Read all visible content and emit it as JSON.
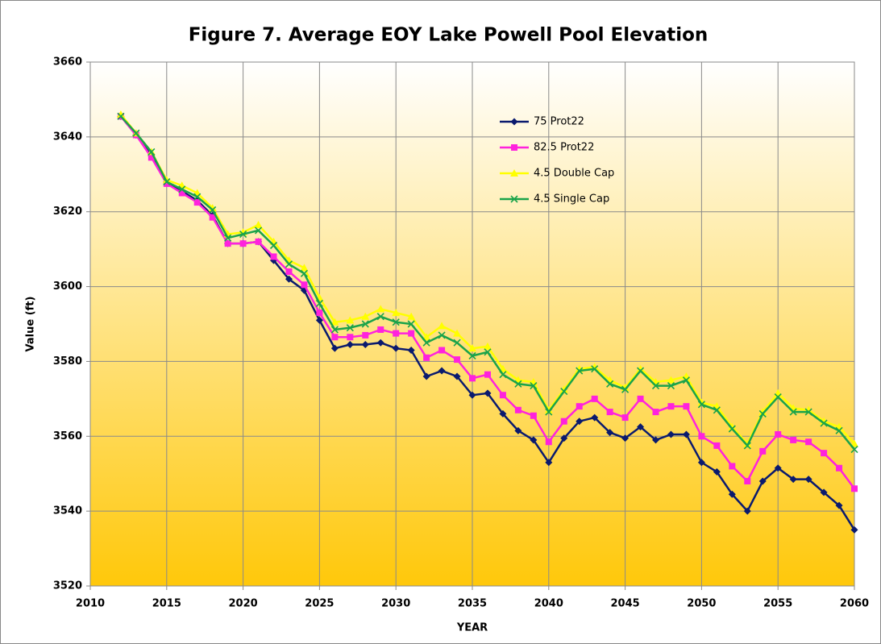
{
  "chart_data": {
    "type": "line",
    "title": "Figure 7. Average EOY Lake Powell Pool Elevation",
    "x_label": "YEAR",
    "y_label": "Value (ft)",
    "x": [
      2012,
      2013,
      2014,
      2015,
      2016,
      2017,
      2018,
      2019,
      2020,
      2021,
      2022,
      2023,
      2024,
      2025,
      2026,
      2027,
      2028,
      2029,
      2030,
      2031,
      2032,
      2033,
      2034,
      2035,
      2036,
      2037,
      2038,
      2039,
      2040,
      2041,
      2042,
      2043,
      2044,
      2045,
      2046,
      2047,
      2048,
      2049,
      2050,
      2051,
      2052,
      2053,
      2054,
      2055,
      2056,
      2057,
      2058,
      2059,
      2060
    ],
    "series": [
      {
        "name": "75 Prot22",
        "color": "#0a1a6e",
        "marker": "diamond",
        "values": [
          3645.5,
          3640.5,
          3635,
          3628,
          3625.5,
          3623,
          3619,
          3611.5,
          3611.5,
          3612,
          3607,
          3602,
          3599,
          3591,
          3583.5,
          3584.5,
          3584.5,
          3585,
          3583.5,
          3583,
          3576,
          3577.5,
          3576,
          3571,
          3571.5,
          3566,
          3561.5,
          3559,
          3553,
          3559.5,
          3564,
          3565,
          3561,
          3559.5,
          3562.5,
          3559,
          3560.5,
          3560.5,
          3553,
          3550.5,
          3544.5,
          3540,
          3548,
          3551.5,
          3548.5,
          3548.5,
          3545,
          3541.5,
          3535
        ]
      },
      {
        "name": "82.5 Prot22",
        "color": "#ff22dd",
        "marker": "square",
        "values": [
          3645.5,
          3640.5,
          3634.5,
          3627.5,
          3625,
          3622.5,
          3618.5,
          3611.5,
          3611.5,
          3612,
          3608,
          3604,
          3600.5,
          3593,
          3586.5,
          3586.5,
          3587,
          3588.5,
          3587.5,
          3587.5,
          3581,
          3583,
          3580.5,
          3575.5,
          3576.5,
          3571,
          3567,
          3565.5,
          3558.5,
          3564,
          3568,
          3570,
          3566.5,
          3565,
          3570,
          3566.5,
          3568,
          3568,
          3560,
          3557.5,
          3552,
          3548,
          3556,
          3560.5,
          3559,
          3558.5,
          3555.5,
          3551.5,
          3546
        ]
      },
      {
        "name": "4.5 Double Cap",
        "color": "#ffff00",
        "marker": "triangle",
        "values": [
          3646,
          3641,
          3636,
          3628.5,
          3627,
          3625,
          3621,
          3614,
          3614.5,
          3616.5,
          3612,
          3607,
          3605,
          3597,
          3590.5,
          3591,
          3592,
          3594,
          3593,
          3592,
          3586.5,
          3589.5,
          3587.5,
          3583.5,
          3584,
          3578,
          3575,
          3574.5,
          3567,
          3572.5,
          3578,
          3578.5,
          3575,
          3573,
          3578,
          3574.5,
          3575,
          3576,
          3569,
          3568,
          3562.5,
          3558,
          3566.5,
          3571.5,
          3567.5,
          3567,
          3564,
          3562.5,
          3558
        ]
      },
      {
        "name": "4.5 Single Cap",
        "color": "#1aa34a",
        "marker": "x",
        "values": [
          3645.5,
          3641,
          3636,
          3628,
          3626,
          3624,
          3620.5,
          3613,
          3614,
          3615,
          3611,
          3606,
          3603.5,
          3595.5,
          3588.5,
          3589,
          3590,
          3592,
          3590.5,
          3590,
          3585,
          3587,
          3585,
          3581.5,
          3582.5,
          3576.5,
          3574,
          3573.5,
          3566.5,
          3572,
          3577.5,
          3578,
          3574,
          3572.5,
          3577.5,
          3573.5,
          3573.5,
          3575,
          3568.5,
          3567,
          3562,
          3557.5,
          3566,
          3570.5,
          3566.5,
          3566.5,
          3563.5,
          3561.5,
          3556.5
        ]
      }
    ],
    "xlim": [
      2010,
      2060
    ],
    "xticks": [
      2010,
      2015,
      2020,
      2025,
      2030,
      2035,
      2040,
      2045,
      2050,
      2055,
      2060
    ],
    "ylim": [
      3520,
      3660
    ],
    "yticks": [
      3520,
      3540,
      3560,
      3580,
      3600,
      3620,
      3640,
      3660
    ],
    "grid": true,
    "legend": "top-center"
  }
}
